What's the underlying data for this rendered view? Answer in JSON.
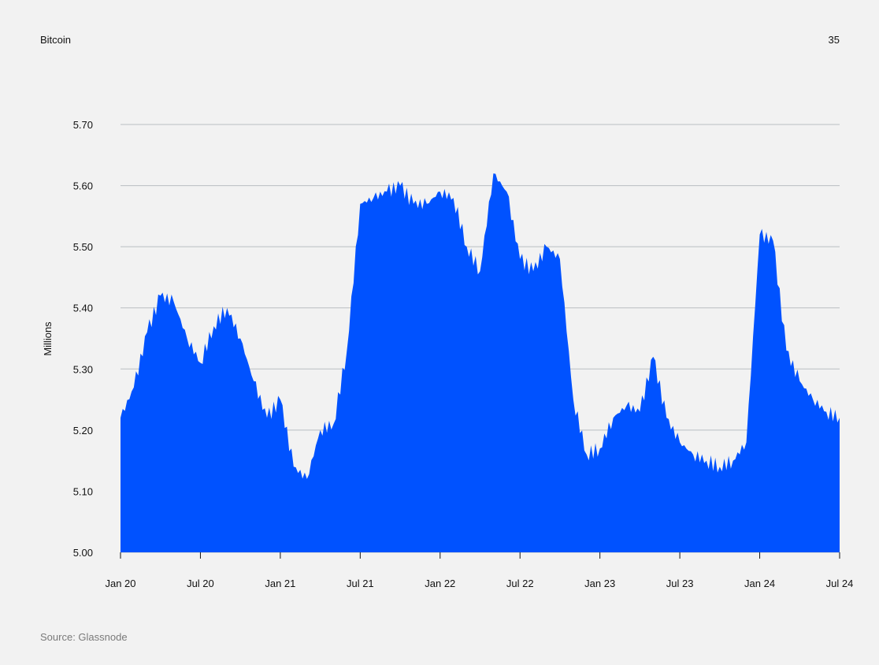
{
  "header": {
    "title": "Bitcoin",
    "page_number": "35"
  },
  "footer": {
    "source": "Source: Glassnode"
  },
  "chart_data": {
    "type": "area",
    "ylabel": "Millions",
    "ylim": [
      5.0,
      5.7
    ],
    "yticks": [
      "5.70",
      "5.60",
      "5.50",
      "5.40",
      "5.30",
      "5.20",
      "5.10",
      "5.00"
    ],
    "xticks": [
      "Jan 20",
      "Jul 20",
      "Jan 21",
      "Jul 21",
      "Jan 22",
      "Jul 22",
      "Jan 23",
      "Jul 23",
      "Jan 24",
      "Jul 24"
    ],
    "grid": true,
    "color": "#0052ff",
    "series": [
      {
        "x": [
          "2020-01",
          "2020-02",
          "2020-03",
          "2020-04",
          "2020-05",
          "2020-06",
          "2020-07",
          "2020-08",
          "2020-09",
          "2020-10",
          "2020-11",
          "2020-12",
          "2021-01",
          "2021-02",
          "2021-03",
          "2021-04",
          "2021-05",
          "2021-06",
          "2021-07",
          "2021-08",
          "2021-09",
          "2021-10",
          "2021-11",
          "2021-12",
          "2022-01",
          "2022-02",
          "2022-03",
          "2022-04",
          "2022-05",
          "2022-06",
          "2022-07",
          "2022-08",
          "2022-09",
          "2022-10",
          "2022-11",
          "2022-12",
          "2023-01",
          "2023-02",
          "2023-03",
          "2023-04",
          "2023-05",
          "2023-06",
          "2023-07",
          "2023-08",
          "2023-09",
          "2023-10",
          "2023-11",
          "2023-12",
          "2024-01",
          "2024-02",
          "2024-03",
          "2024-04",
          "2024-05",
          "2024-06",
          "2024-07"
        ],
        "values": [
          5.22,
          5.27,
          5.36,
          5.42,
          5.41,
          5.35,
          5.31,
          5.37,
          5.4,
          5.35,
          5.28,
          5.22,
          5.25,
          5.14,
          5.12,
          5.2,
          5.21,
          5.33,
          5.57,
          5.58,
          5.59,
          5.6,
          5.57,
          5.57,
          5.59,
          5.58,
          5.5,
          5.46,
          5.62,
          5.59,
          5.48,
          5.46,
          5.5,
          5.48,
          5.25,
          5.16,
          5.17,
          5.22,
          5.24,
          5.23,
          5.32,
          5.22,
          5.18,
          5.16,
          5.15,
          5.14,
          5.15,
          5.18,
          5.52,
          5.51,
          5.33,
          5.28,
          5.25,
          5.23,
          5.22
        ]
      }
    ]
  }
}
